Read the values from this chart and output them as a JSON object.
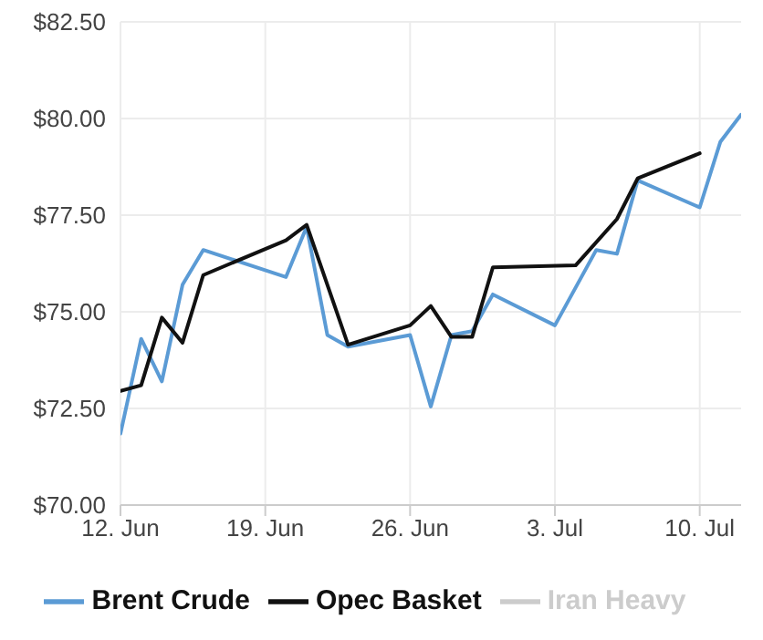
{
  "chart_data": {
    "type": "line",
    "xlim": [
      "--06-12",
      "--07-12"
    ],
    "xticks": [
      {
        "value": "--06-12",
        "label": "12. Jun"
      },
      {
        "value": "--06-19",
        "label": "19. Jun"
      },
      {
        "value": "--06-26",
        "label": "26. Jun"
      },
      {
        "value": "--07-03",
        "label": "3. Jul"
      },
      {
        "value": "--07-10",
        "label": "10. Jul"
      }
    ],
    "ylim": [
      70,
      82.5
    ],
    "yticks": [
      {
        "value": 70,
        "label": "$70.00"
      },
      {
        "value": 72.5,
        "label": "$72.50"
      },
      {
        "value": 75,
        "label": "$75.00"
      },
      {
        "value": 77.5,
        "label": "$77.50"
      },
      {
        "value": 80,
        "label": "$80.00"
      },
      {
        "value": 82.5,
        "label": "$82.50"
      }
    ],
    "grid": true,
    "legend": "bottom",
    "marker": "none",
    "line_style": "solid",
    "series": [
      {
        "name": "Brent Crude",
        "color": "#5b9bd5",
        "x": [
          "--06-12",
          "--06-13",
          "--06-14",
          "--06-15",
          "--06-16",
          "--06-20",
          "--06-21",
          "--06-22",
          "--06-23",
          "--06-26",
          "--06-27",
          "--06-28",
          "--06-29",
          "--06-30",
          "--07-03",
          "--07-05",
          "--07-06",
          "--07-07",
          "--07-10",
          "--07-11",
          "--07-12"
        ],
        "values": [
          71.85,
          74.3,
          73.2,
          75.7,
          76.6,
          75.9,
          77.2,
          74.4,
          74.1,
          74.4,
          72.55,
          74.4,
          74.5,
          75.45,
          74.65,
          76.6,
          76.5,
          78.4,
          77.7,
          79.4,
          80.1
        ]
      },
      {
        "name": "Opec Basket",
        "color": "#111111",
        "x": [
          "--06-12",
          "--06-13",
          "--06-14",
          "--06-15",
          "--06-16",
          "--06-20",
          "--06-21",
          "--06-23",
          "--06-26",
          "--06-27",
          "--06-28",
          "--06-29",
          "--06-30",
          "--07-04",
          "--07-06",
          "--07-07",
          "--07-10"
        ],
        "values": [
          72.95,
          73.1,
          74.85,
          74.2,
          75.95,
          76.85,
          77.25,
          74.15,
          74.65,
          75.15,
          74.35,
          74.35,
          76.15,
          76.2,
          77.4,
          78.45,
          79.1
        ]
      },
      {
        "name": "Iran Heavy",
        "color": "#cccccc"
      }
    ]
  }
}
